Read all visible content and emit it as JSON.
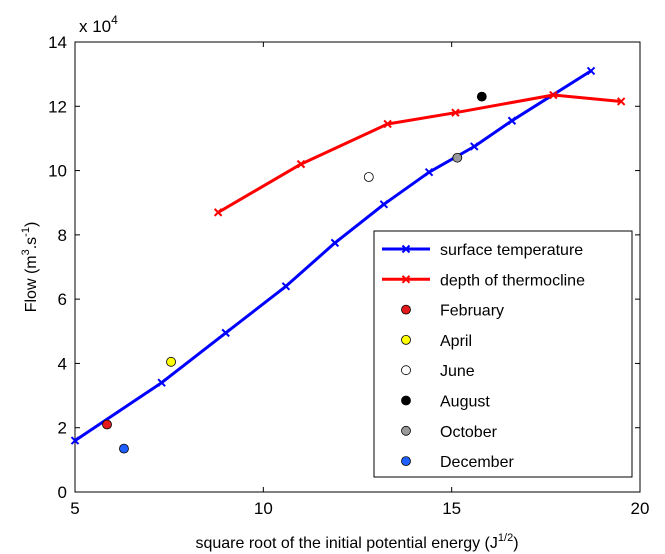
{
  "chart_data": {
    "type": "line",
    "xlabel": "square root of the initial potential energy (J",
    "xlabel_sup": "1/2",
    "xlabel_end": ")",
    "ylabel": "Flow (m",
    "ylabel_sup1": "3",
    "ylabel_mid": ".s",
    "ylabel_sup2": "-1",
    "ylabel_end": ")",
    "y_multiplier_base": "x 10",
    "y_multiplier_exp": "4",
    "xlim": [
      5,
      20
    ],
    "ylim": [
      0,
      14
    ],
    "x_ticks": [
      5,
      10,
      15,
      20
    ],
    "y_ticks": [
      0,
      2,
      4,
      6,
      8,
      10,
      12,
      14
    ],
    "x_tick_labels": [
      "5",
      "10",
      "15",
      "20"
    ],
    "y_tick_labels": [
      "0",
      "2",
      "4",
      "6",
      "8",
      "10",
      "12",
      "14"
    ],
    "grid": false,
    "legend_position": "bottom-right",
    "series": [
      {
        "name": "surface temperature",
        "color": "#0000ff",
        "marker": "x",
        "x": [
          5.0,
          7.3,
          9.0,
          10.6,
          11.9,
          13.2,
          14.4,
          15.6,
          16.6,
          18.7
        ],
        "y": [
          1.6,
          3.4,
          4.95,
          6.4,
          7.75,
          8.95,
          9.95,
          10.75,
          11.55,
          13.1
        ]
      },
      {
        "name": "depth of thermocline",
        "color": "#ff0000",
        "marker": "x",
        "x": [
          8.8,
          11.0,
          13.3,
          15.1,
          17.7,
          19.5
        ],
        "y": [
          8.7,
          10.2,
          11.45,
          11.8,
          12.35,
          12.15
        ]
      }
    ],
    "points": [
      {
        "name": "February",
        "x": 5.85,
        "y": 2.1,
        "color": "#e31a1c"
      },
      {
        "name": "April",
        "x": 7.55,
        "y": 4.05,
        "color": "#ffff00"
      },
      {
        "name": "June",
        "x": 12.8,
        "y": 9.8,
        "color": "#ffffff"
      },
      {
        "name": "August",
        "x": 15.8,
        "y": 12.3,
        "color": "#000000"
      },
      {
        "name": "October",
        "x": 15.15,
        "y": 10.4,
        "color": "#999999"
      },
      {
        "name": "December",
        "x": 6.3,
        "y": 1.35,
        "color": "#1f5fff"
      }
    ]
  }
}
